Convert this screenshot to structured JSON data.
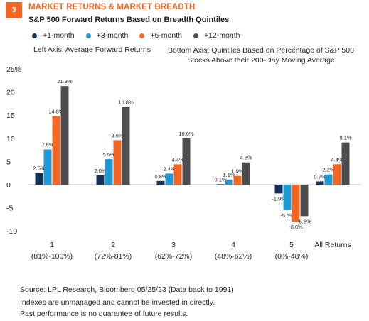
{
  "header": {
    "badge": "3",
    "title": "MARKET RETURNS & MARKET BREADTH",
    "subtitle": "S&P 500 Forward Returns Based on Breadth Quintiles",
    "left_axis_note": "Left Axis: Average Forward Returns",
    "bottom_axis_note": "Bottom Axis: Quintiles Based on Percentage of S&P 500 Stocks Above their 200-Day Moving Average"
  },
  "chart_data": {
    "type": "bar",
    "categories": [
      [
        "1",
        "(81%-100%)"
      ],
      [
        "2",
        "(72%-81%)"
      ],
      [
        "3",
        "(62%-72%)"
      ],
      [
        "4",
        "(48%-62%)"
      ],
      [
        "5",
        "(0%-48%)"
      ],
      [
        "All Returns",
        ""
      ]
    ],
    "series": [
      {
        "name": "+1-month",
        "color": "#14325c",
        "values": [
          2.5,
          2.0,
          0.8,
          0.1,
          -1.9,
          0.7
        ],
        "labels": [
          "2.5%",
          "2.0%",
          "0.8%",
          "0.1%",
          "-1.9%",
          "0.7%"
        ]
      },
      {
        "name": "+3-month",
        "color": "#1e9ad6",
        "values": [
          7.6,
          5.5,
          2.4,
          1.1,
          -5.5,
          2.2
        ],
        "labels": [
          "7.6%",
          "5.5%",
          "2.4%",
          "1.1%",
          "-5.5%",
          "2.2%"
        ]
      },
      {
        "name": "+6-month",
        "color": "#f26522",
        "values": [
          14.8,
          9.6,
          4.4,
          1.9,
          -8.0,
          4.4
        ],
        "labels": [
          "14.8%",
          "9.6%",
          "4.4%",
          "1.9%",
          "-8.0%",
          "4.4%"
        ]
      },
      {
        "name": "+12-month",
        "color": "#4d4d4f",
        "values": [
          21.3,
          16.8,
          10.0,
          4.8,
          -6.8,
          9.1
        ],
        "labels": [
          "21.3%",
          "16.8%",
          "10.0%",
          "4.8%",
          "-6.8%",
          "9.1%"
        ]
      }
    ],
    "yticks": [
      "25%",
      "20",
      "15",
      "10",
      "5",
      "0",
      "-5",
      "-10"
    ],
    "ytick_values": [
      25,
      20,
      15,
      10,
      5,
      0,
      -5,
      -10
    ],
    "ylim": [
      -10,
      25
    ],
    "grid": false,
    "legend_position": "top-left"
  },
  "footer": {
    "source": "Source: LPL Research, Bloomberg  05/25/23 (Data back to 1991)",
    "disclaimer1": "Indexes are unmanaged and cannot be invested in directly.",
    "disclaimer2": "Past performance is no guarantee of future results."
  }
}
